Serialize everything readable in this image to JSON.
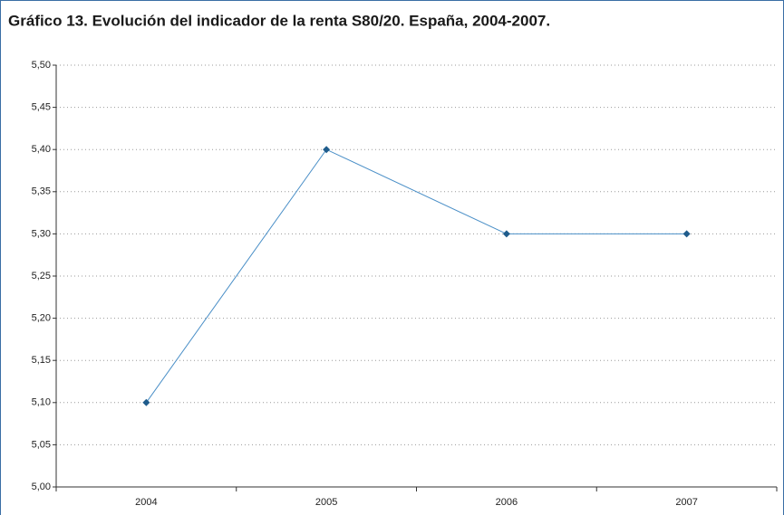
{
  "chart_data": {
    "type": "line",
    "title": "Gráfico 13. Evolución del indicador de la renta S80/20. España, 2004-2007.",
    "categories": [
      "2004",
      "2005",
      "2006",
      "2007"
    ],
    "values": [
      5.1,
      5.4,
      5.3,
      5.3
    ],
    "color": "#1f5c8c",
    "ylim": [
      5.0,
      5.5
    ],
    "yticks": [
      {
        "value": 5.0,
        "label": "5,00"
      },
      {
        "value": 5.05,
        "label": "5,05"
      },
      {
        "value": 5.1,
        "label": "5,10"
      },
      {
        "value": 5.15,
        "label": "5,15"
      },
      {
        "value": 5.2,
        "label": "5,20"
      },
      {
        "value": 5.25,
        "label": "5,25"
      },
      {
        "value": 5.3,
        "label": "5,30"
      },
      {
        "value": 5.35,
        "label": "5,35"
      },
      {
        "value": 5.4,
        "label": "5,40"
      },
      {
        "value": 5.45,
        "label": "5,45"
      },
      {
        "value": 5.5,
        "label": "5,50"
      }
    ],
    "grid": true
  }
}
